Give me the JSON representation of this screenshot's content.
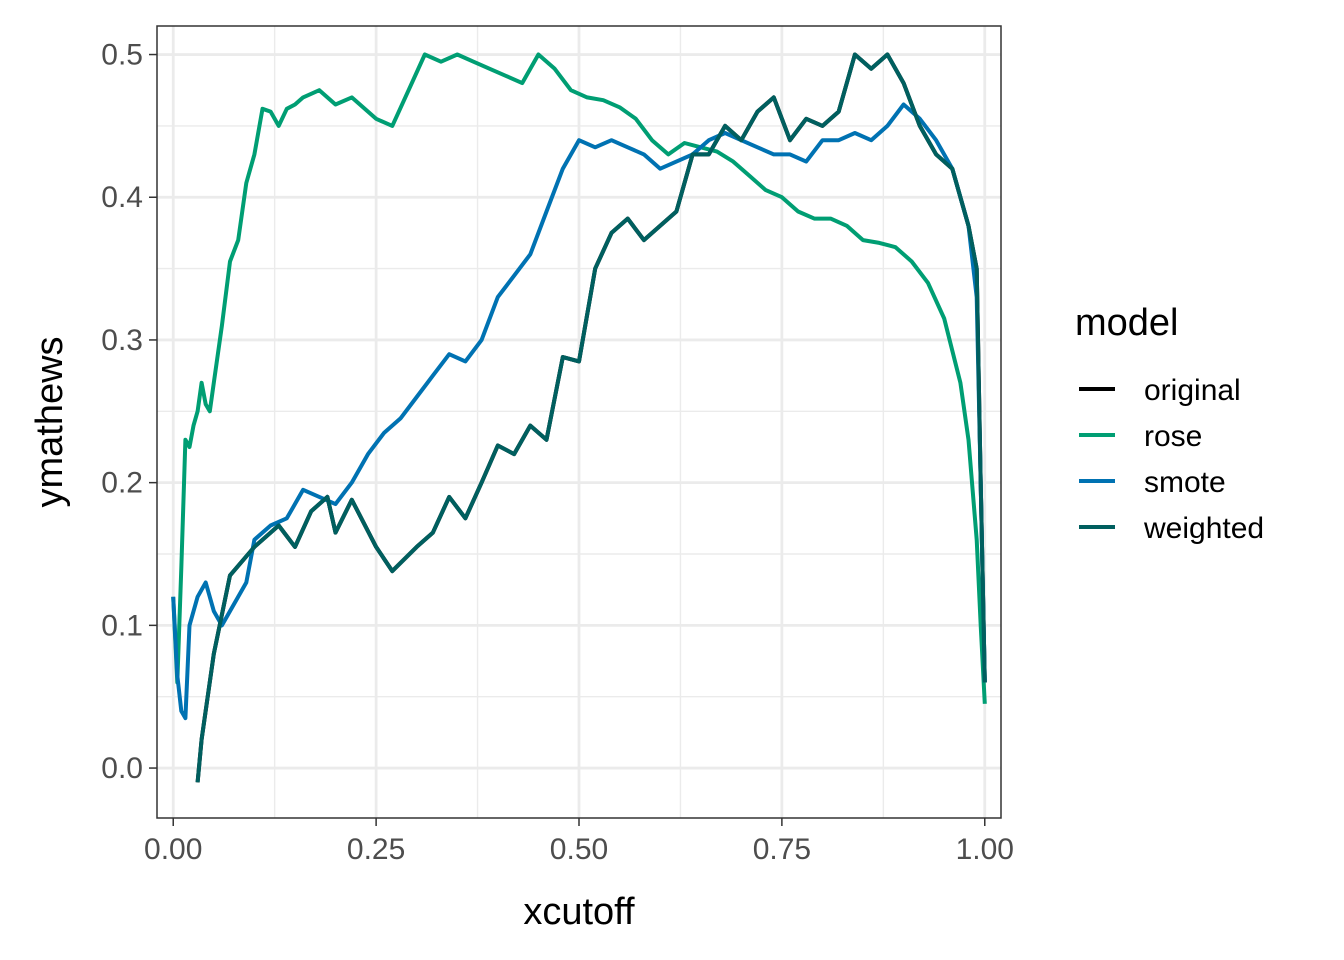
{
  "chart_data": {
    "type": "line",
    "xlabel": "xcutoff",
    "ylabel": "ymathews",
    "xlim": [
      -0.02,
      1.02
    ],
    "ylim": [
      -0.035,
      0.52
    ],
    "x_ticks": [
      {
        "value": 0.0,
        "label": "0.00"
      },
      {
        "value": 0.25,
        "label": "0.25"
      },
      {
        "value": 0.5,
        "label": "0.50"
      },
      {
        "value": 0.75,
        "label": "0.75"
      },
      {
        "value": 1.0,
        "label": "1.00"
      }
    ],
    "y_ticks": [
      {
        "value": 0.0,
        "label": "0.0"
      },
      {
        "value": 0.1,
        "label": "0.1"
      },
      {
        "value": 0.2,
        "label": "0.2"
      },
      {
        "value": 0.3,
        "label": "0.3"
      },
      {
        "value": 0.4,
        "label": "0.4"
      },
      {
        "value": 0.5,
        "label": "0.5"
      }
    ],
    "grid": true,
    "legend": {
      "title": "model",
      "position": "right"
    },
    "series": [
      {
        "name": "original",
        "color": "#000000",
        "x": [
          0.03,
          0.035,
          0.05,
          0.07,
          0.1,
          0.13,
          0.15,
          0.17,
          0.19,
          0.2,
          0.22,
          0.25,
          0.27,
          0.3,
          0.32,
          0.34,
          0.36,
          0.38,
          0.4,
          0.42,
          0.44,
          0.46,
          0.48,
          0.5,
          0.52,
          0.54,
          0.56,
          0.58,
          0.6,
          0.62,
          0.64,
          0.66,
          0.68,
          0.7,
          0.72,
          0.74,
          0.76,
          0.78,
          0.8,
          0.82,
          0.84,
          0.86,
          0.88,
          0.9,
          0.92,
          0.94,
          0.96,
          0.98,
          0.99,
          0.995,
          1.0
        ],
        "y": [
          -0.01,
          0.02,
          0.08,
          0.135,
          0.155,
          0.17,
          0.155,
          0.18,
          0.19,
          0.165,
          0.188,
          0.155,
          0.138,
          0.155,
          0.165,
          0.19,
          0.175,
          0.2,
          0.226,
          0.22,
          0.24,
          0.23,
          0.288,
          0.285,
          0.35,
          0.375,
          0.385,
          0.37,
          0.38,
          0.39,
          0.43,
          0.43,
          0.45,
          0.44,
          0.46,
          0.47,
          0.44,
          0.455,
          0.45,
          0.46,
          0.5,
          0.49,
          0.5,
          0.48,
          0.45,
          0.43,
          0.42,
          0.38,
          0.35,
          0.2,
          0.06
        ]
      },
      {
        "name": "rose",
        "color": "#009E73",
        "x": [
          0.0,
          0.005,
          0.01,
          0.015,
          0.02,
          0.025,
          0.03,
          0.035,
          0.04,
          0.045,
          0.05,
          0.06,
          0.07,
          0.08,
          0.09,
          0.1,
          0.11,
          0.12,
          0.13,
          0.14,
          0.15,
          0.16,
          0.18,
          0.2,
          0.22,
          0.25,
          0.27,
          0.29,
          0.31,
          0.33,
          0.35,
          0.37,
          0.39,
          0.41,
          0.43,
          0.45,
          0.47,
          0.49,
          0.51,
          0.53,
          0.55,
          0.57,
          0.59,
          0.61,
          0.63,
          0.65,
          0.67,
          0.69,
          0.71,
          0.73,
          0.75,
          0.77,
          0.79,
          0.81,
          0.83,
          0.85,
          0.87,
          0.89,
          0.91,
          0.93,
          0.95,
          0.97,
          0.98,
          0.99,
          0.995,
          1.0
        ],
        "y": [
          0.12,
          0.06,
          0.14,
          0.23,
          0.225,
          0.24,
          0.25,
          0.27,
          0.255,
          0.25,
          0.27,
          0.31,
          0.355,
          0.37,
          0.41,
          0.43,
          0.462,
          0.46,
          0.45,
          0.462,
          0.465,
          0.47,
          0.475,
          0.465,
          0.47,
          0.455,
          0.45,
          0.475,
          0.5,
          0.495,
          0.5,
          0.495,
          0.49,
          0.485,
          0.48,
          0.5,
          0.49,
          0.475,
          0.47,
          0.468,
          0.463,
          0.455,
          0.44,
          0.43,
          0.438,
          0.435,
          0.432,
          0.425,
          0.415,
          0.405,
          0.4,
          0.39,
          0.385,
          0.385,
          0.38,
          0.37,
          0.368,
          0.365,
          0.355,
          0.34,
          0.315,
          0.27,
          0.23,
          0.16,
          0.1,
          0.045
        ]
      },
      {
        "name": "smote",
        "color": "#0072B2",
        "x": [
          0.0,
          0.005,
          0.01,
          0.015,
          0.02,
          0.03,
          0.04,
          0.05,
          0.06,
          0.07,
          0.08,
          0.09,
          0.1,
          0.12,
          0.14,
          0.16,
          0.18,
          0.2,
          0.22,
          0.24,
          0.26,
          0.28,
          0.3,
          0.32,
          0.34,
          0.36,
          0.38,
          0.4,
          0.42,
          0.44,
          0.46,
          0.48,
          0.5,
          0.52,
          0.54,
          0.56,
          0.58,
          0.6,
          0.62,
          0.64,
          0.66,
          0.68,
          0.7,
          0.72,
          0.74,
          0.76,
          0.78,
          0.8,
          0.82,
          0.84,
          0.86,
          0.88,
          0.9,
          0.92,
          0.94,
          0.96,
          0.98,
          0.99,
          0.995,
          1.0
        ],
        "y": [
          0.12,
          0.065,
          0.04,
          0.035,
          0.1,
          0.12,
          0.13,
          0.11,
          0.1,
          0.11,
          0.12,
          0.13,
          0.16,
          0.17,
          0.175,
          0.195,
          0.19,
          0.185,
          0.2,
          0.22,
          0.235,
          0.245,
          0.26,
          0.275,
          0.29,
          0.285,
          0.3,
          0.33,
          0.345,
          0.36,
          0.39,
          0.42,
          0.44,
          0.435,
          0.44,
          0.435,
          0.43,
          0.42,
          0.425,
          0.43,
          0.44,
          0.445,
          0.44,
          0.435,
          0.43,
          0.43,
          0.425,
          0.44,
          0.44,
          0.445,
          0.44,
          0.45,
          0.465,
          0.455,
          0.44,
          0.42,
          0.38,
          0.33,
          0.2,
          0.06
        ]
      },
      {
        "name": "weighted",
        "color": "#005F5F",
        "x": [
          0.03,
          0.035,
          0.05,
          0.07,
          0.1,
          0.13,
          0.15,
          0.17,
          0.19,
          0.2,
          0.22,
          0.25,
          0.27,
          0.3,
          0.32,
          0.34,
          0.36,
          0.38,
          0.4,
          0.42,
          0.44,
          0.46,
          0.48,
          0.5,
          0.52,
          0.54,
          0.56,
          0.58,
          0.6,
          0.62,
          0.64,
          0.66,
          0.68,
          0.7,
          0.72,
          0.74,
          0.76,
          0.78,
          0.8,
          0.82,
          0.84,
          0.86,
          0.88,
          0.9,
          0.92,
          0.94,
          0.96,
          0.98,
          0.99,
          0.995,
          1.0
        ],
        "y": [
          -0.01,
          0.02,
          0.08,
          0.135,
          0.155,
          0.17,
          0.155,
          0.18,
          0.19,
          0.165,
          0.188,
          0.155,
          0.138,
          0.155,
          0.165,
          0.19,
          0.175,
          0.2,
          0.226,
          0.22,
          0.24,
          0.23,
          0.288,
          0.285,
          0.35,
          0.375,
          0.385,
          0.37,
          0.38,
          0.39,
          0.43,
          0.43,
          0.45,
          0.44,
          0.46,
          0.47,
          0.44,
          0.455,
          0.45,
          0.46,
          0.5,
          0.49,
          0.5,
          0.48,
          0.45,
          0.43,
          0.42,
          0.38,
          0.35,
          0.2,
          0.06
        ]
      }
    ]
  }
}
